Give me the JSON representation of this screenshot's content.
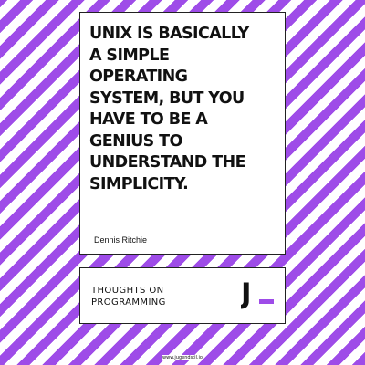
{
  "quote": {
    "text": "UNIX IS BASICALLY\nA SIMPLE\nOPERATING\nSYSTEM, BUT YOU\nHAVE TO BE A\nGENIUS TO\nUNDERSTAND THE\nSIMPLICITY.",
    "author": "Dennis Ritchie"
  },
  "footer": {
    "series_title": "THOUGHTS ON\nPROGRAMMING",
    "logo_letter": "J"
  },
  "website": "www.jugendstil.io",
  "colors": {
    "stripe_purple": "#9e4ce8",
    "stripe_white": "#ffffff",
    "logo_underscore": "#9e4ce8",
    "text": "#111111"
  }
}
